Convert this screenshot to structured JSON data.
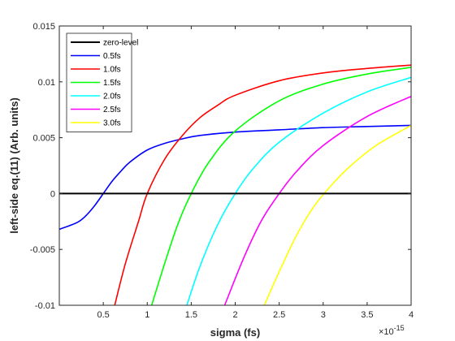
{
  "chart_data": {
    "type": "line",
    "title": "",
    "xlabel": "sigma (fs)",
    "ylabel": "left-side eq.(11) (Arb. units)",
    "x_exponent_label": "×10",
    "x_exponent_power": "-15",
    "xlim": [
      0.0,
      4.0
    ],
    "ylim": [
      -0.01,
      0.015
    ],
    "x_ticks": [
      0.5,
      1,
      1.5,
      2,
      2.5,
      3,
      3.5,
      4
    ],
    "x_tick_labels": [
      "0.5",
      "1",
      "1.5",
      "2",
      "2.5",
      "3",
      "3.5",
      "4"
    ],
    "y_ticks": [
      -0.01,
      -0.005,
      0,
      0.005,
      0.01,
      0.015
    ],
    "y_tick_labels": [
      "-0.01",
      "-0.005",
      "0",
      "0.005",
      "0.01",
      "0.015"
    ],
    "grid": false,
    "legend_position": "top-left",
    "series": [
      {
        "name": "zero-level",
        "color": "#000000",
        "x": [
          0.0,
          4.0
        ],
        "y": [
          0.0,
          0.0
        ]
      },
      {
        "name": "0.5fs",
        "color": "#0000ff",
        "x": [
          0.0,
          0.2,
          0.3,
          0.4,
          0.5,
          0.6,
          0.7,
          0.8,
          1.0,
          1.2,
          1.4,
          1.6,
          2.0,
          2.5,
          3.0,
          3.5,
          4.0
        ],
        "y": [
          -0.0032,
          -0.0026,
          -0.002,
          -0.0011,
          0.0,
          0.0011,
          0.002,
          0.0028,
          0.0039,
          0.0045,
          0.0049,
          0.0052,
          0.0055,
          0.0057,
          0.0059,
          0.006,
          0.0061
        ]
      },
      {
        "name": "1.0fs",
        "color": "#ff0000",
        "x": [
          0.63,
          0.75,
          0.9,
          1.0,
          1.2,
          1.4,
          1.6,
          1.8,
          2.0,
          2.5,
          3.0,
          3.5,
          4.0
        ],
        "y": [
          -0.01,
          -0.0063,
          -0.0025,
          0.0,
          0.0031,
          0.0052,
          0.0068,
          0.0079,
          0.0088,
          0.0101,
          0.0108,
          0.0112,
          0.0115
        ]
      },
      {
        "name": "1.5fs",
        "color": "#00ff00",
        "x": [
          1.05,
          1.2,
          1.35,
          1.5,
          1.7,
          2.0,
          2.5,
          3.0,
          3.5,
          4.0
        ],
        "y": [
          -0.01,
          -0.0062,
          -0.0027,
          0.0,
          0.0028,
          0.0056,
          0.0083,
          0.0098,
          0.0107,
          0.0113
        ]
      },
      {
        "name": "2.0fs",
        "color": "#00ffff",
        "x": [
          1.45,
          1.6,
          1.8,
          2.0,
          2.2,
          2.5,
          3.0,
          3.5,
          4.0
        ],
        "y": [
          -0.01,
          -0.0065,
          -0.0028,
          0.0,
          0.0022,
          0.0046,
          0.0072,
          0.0091,
          0.0104
        ]
      },
      {
        "name": "2.5fs",
        "color": "#ff00ff",
        "x": [
          1.88,
          2.1,
          2.3,
          2.5,
          2.7,
          3.0,
          3.5,
          4.0
        ],
        "y": [
          -0.01,
          -0.0057,
          -0.0024,
          0.0,
          0.002,
          0.0043,
          0.0069,
          0.0087
        ]
      },
      {
        "name": "3.0fs",
        "color": "#ffff00",
        "x": [
          2.33,
          2.5,
          2.7,
          2.9,
          3.1,
          3.3,
          3.6,
          4.0
        ],
        "y": [
          -0.01,
          -0.007,
          -0.0037,
          -0.0011,
          0.0008,
          0.0024,
          0.0043,
          0.0061
        ]
      }
    ]
  }
}
